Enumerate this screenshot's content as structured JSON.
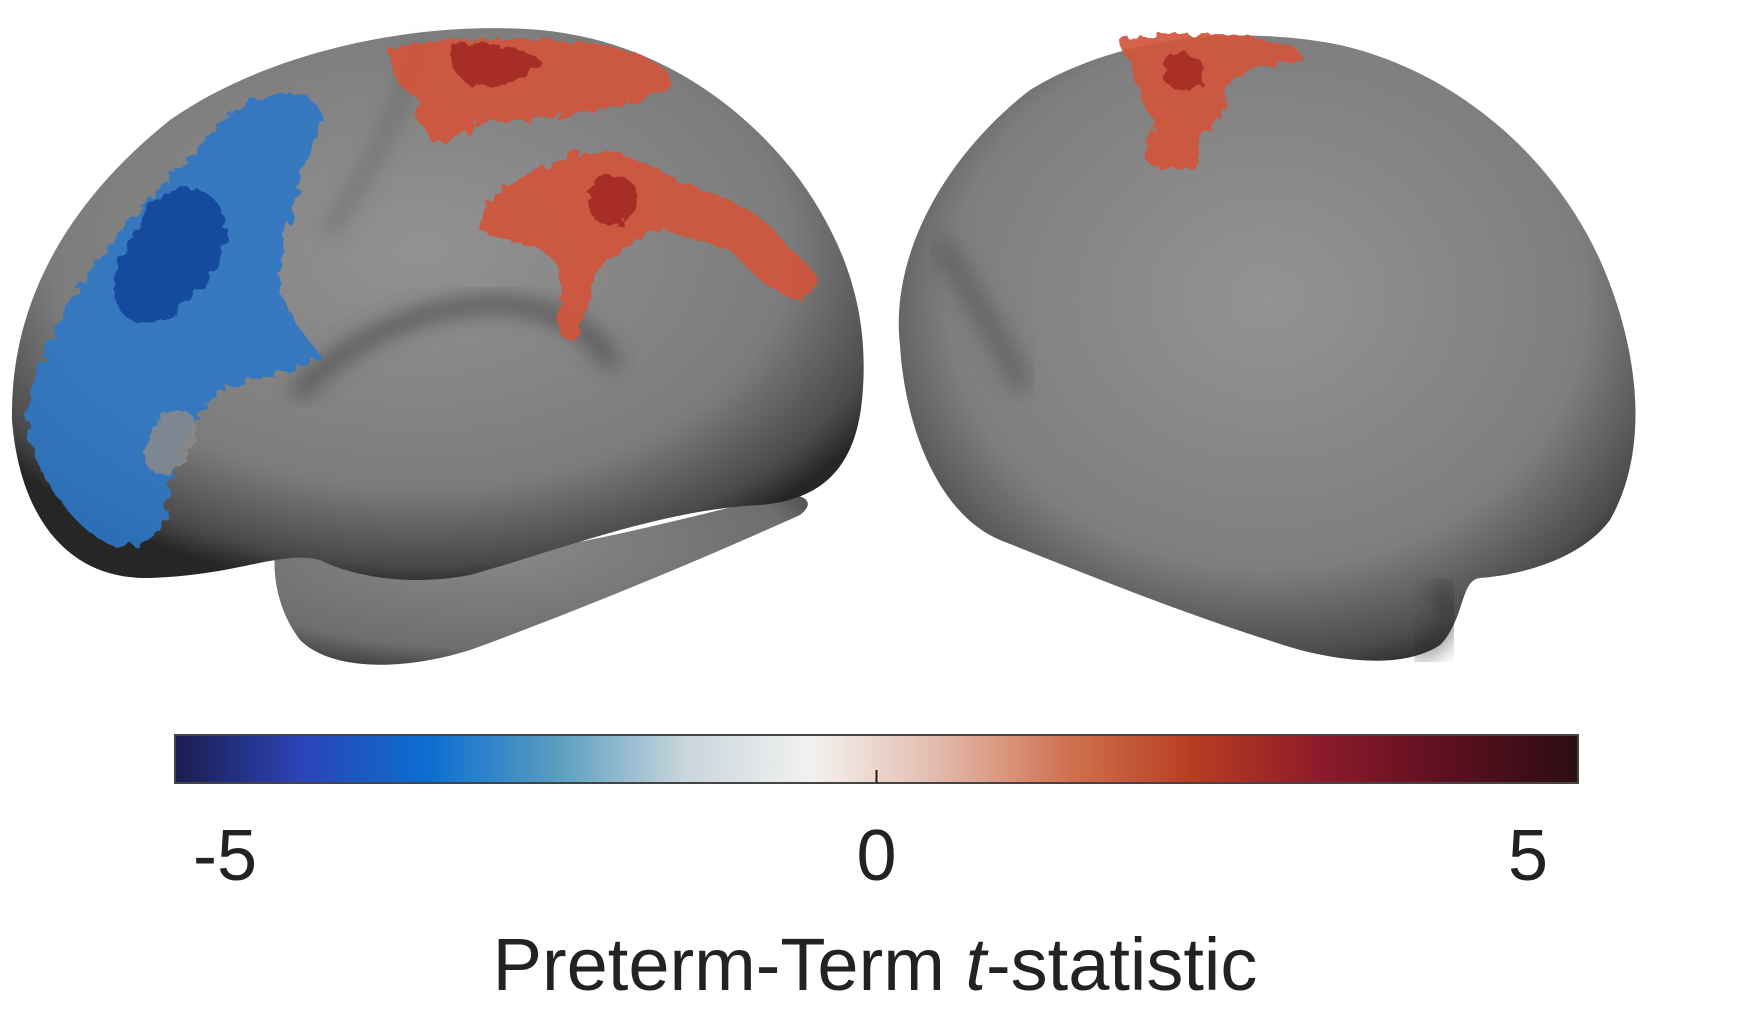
{
  "colorbar": {
    "min": -5,
    "max": 5,
    "ticks": [
      {
        "value": -5,
        "label": "-5"
      },
      {
        "value": 0,
        "label": "0"
      },
      {
        "value": 5,
        "label": "5"
      }
    ],
    "title_prefix": "Preterm-Term ",
    "title_italic": "t",
    "title_suffix": "-statistic",
    "colormap": [
      "#1b1d4f",
      "#2b44b8",
      "#0b6fd0",
      "#5a9ec0",
      "#c9d6dc",
      "#f3f1ef",
      "#e3b9ab",
      "#cf7250",
      "#b83b22",
      "#8c1a2a",
      "#5a1020",
      "#2b0d12"
    ]
  },
  "colors": {
    "cortex_light": "#8c8c8c",
    "cortex_dark": "#2a2a2a",
    "positive_cluster": "#d2553a",
    "positive_core": "#a22524",
    "negative_cluster": "#2f78c6",
    "negative_core": "#0f3f96"
  }
}
